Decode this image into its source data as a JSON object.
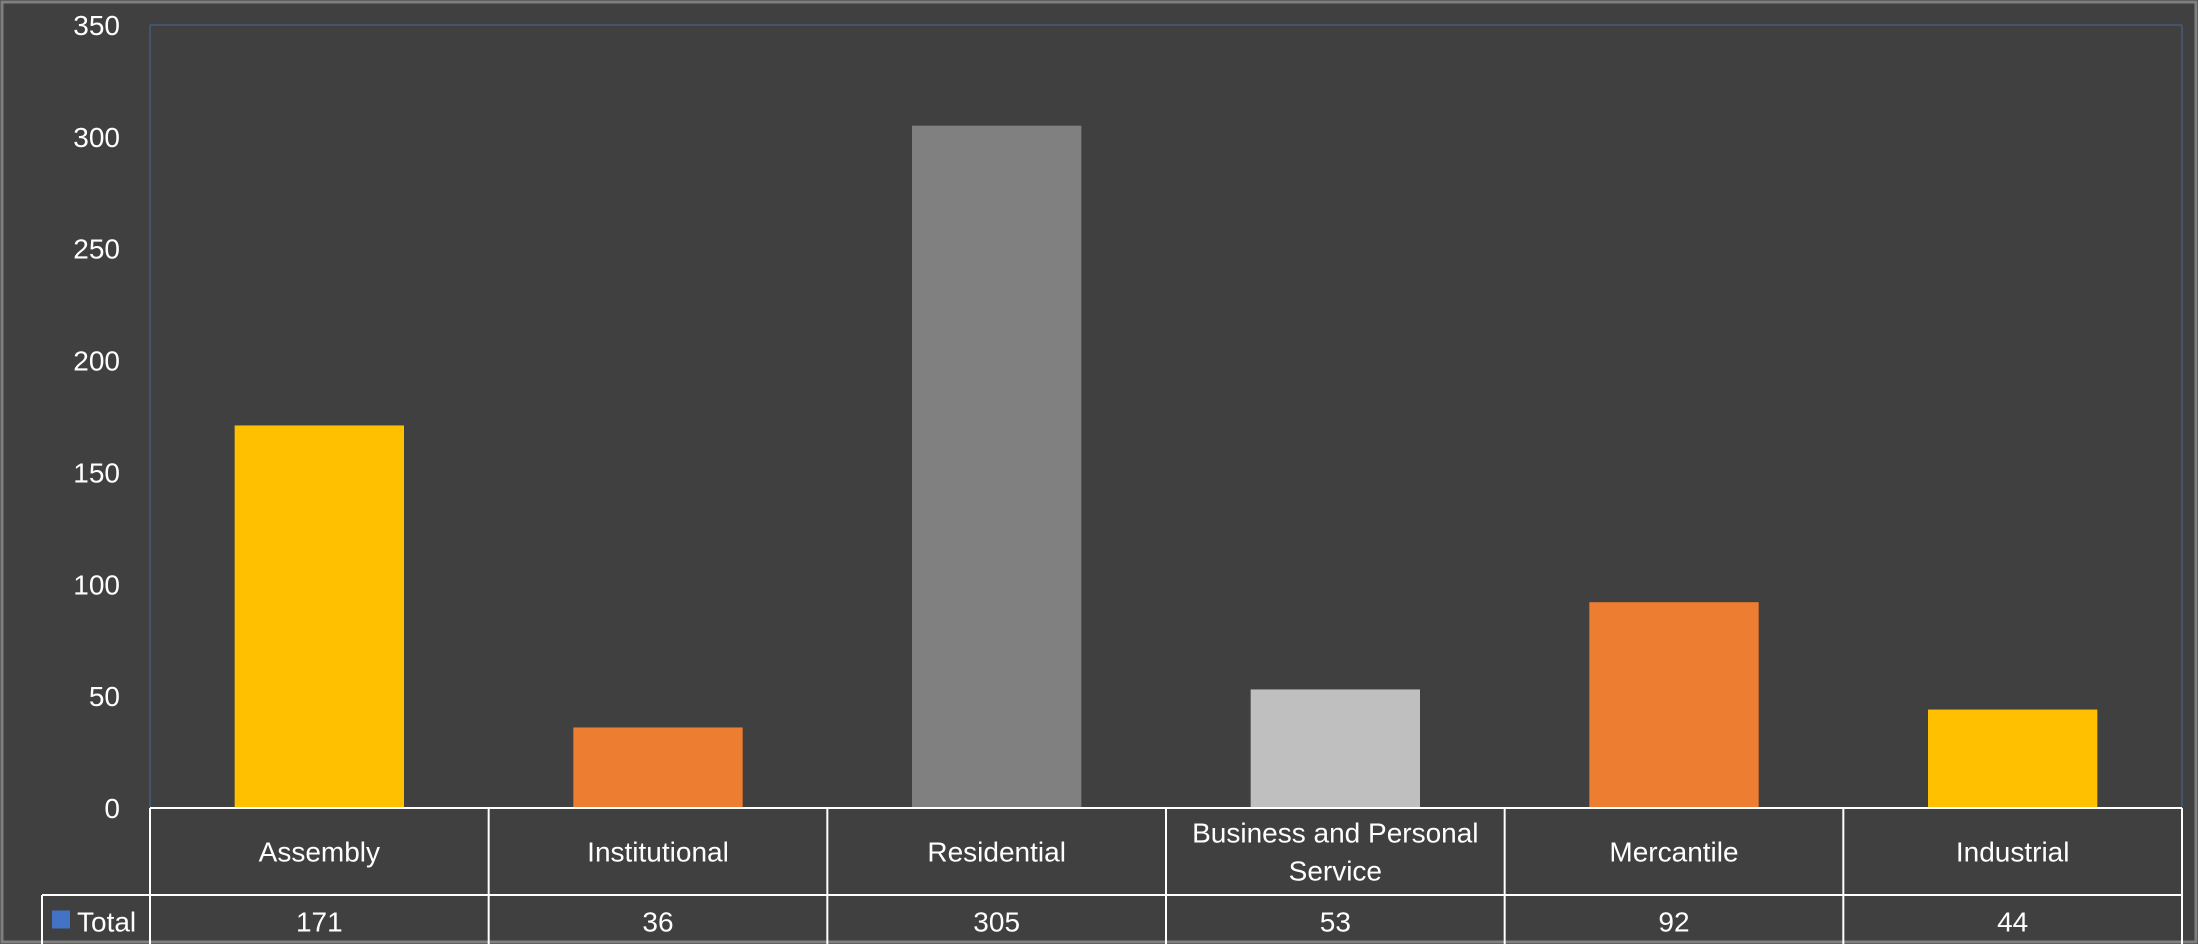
{
  "chart_data": {
    "type": "bar",
    "categories": [
      "Assembly",
      "Institutional",
      "Residential",
      "Business and Personal Service",
      "Mercantile",
      "Industrial"
    ],
    "category_label_lines": [
      [
        "Assembly"
      ],
      [
        "Institutional"
      ],
      [
        "Residential"
      ],
      [
        "Business and Personal",
        "Service"
      ],
      [
        "Mercantile"
      ],
      [
        "Industrial"
      ]
    ],
    "series": [
      {
        "name": "Total",
        "values": [
          171,
          36,
          305,
          53,
          92,
          44
        ],
        "legend_color": "#4472C4"
      }
    ],
    "bar_colors": [
      "#FFC000",
      "#ED7D31",
      "#808080",
      "#BFBFBF",
      "#ED7D31",
      "#FFC000"
    ],
    "ylim": [
      0,
      350
    ],
    "yticks": [
      0,
      50,
      100,
      150,
      200,
      250,
      300,
      350
    ],
    "data_table": true,
    "grid": false,
    "title": "",
    "xlabel": "",
    "ylabel": ""
  },
  "colors": {
    "background": "#404040",
    "text": "#FFFFFF",
    "table_lines": "#FFFFFF",
    "frame": "#7F7F7F",
    "plot_border": "#44546A"
  }
}
